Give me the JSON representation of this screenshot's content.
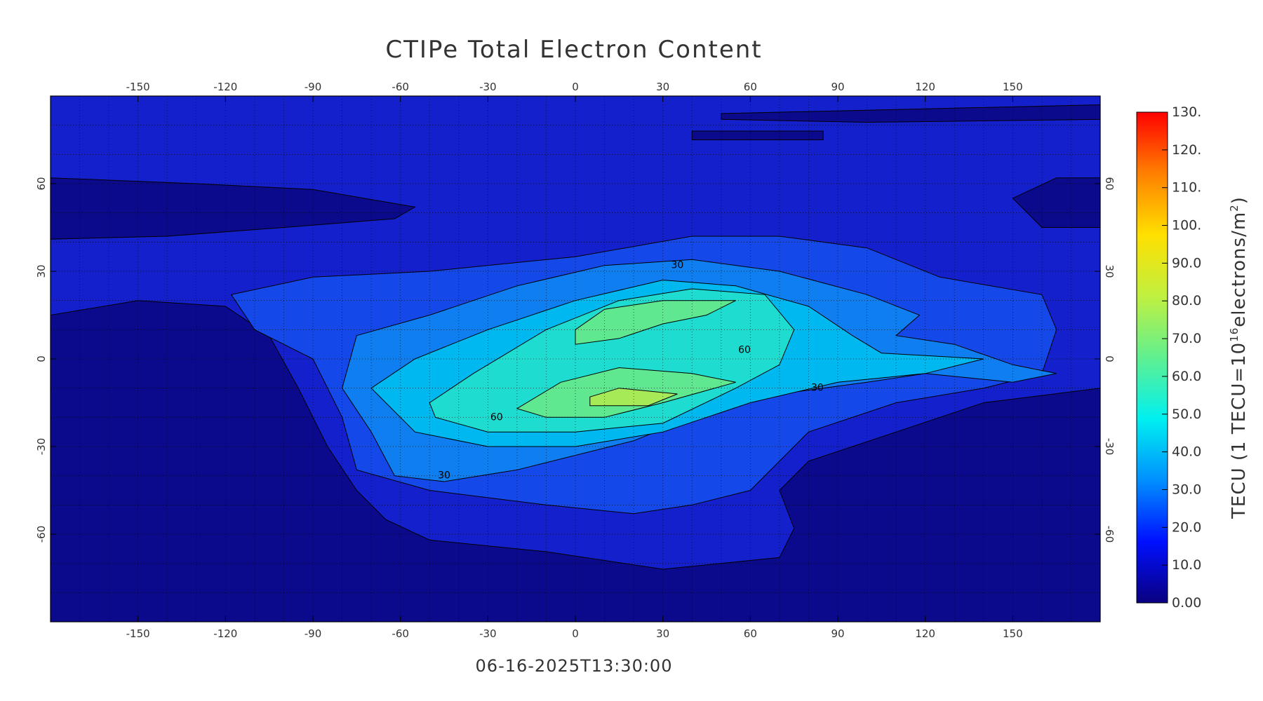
{
  "title": "CTIPe Total Electron Content",
  "timestamp": "06-16-2025T13:30:00",
  "map": {
    "xlim": [
      -180,
      180
    ],
    "ylim": [
      -90,
      90
    ],
    "xticks": [
      -150,
      -120,
      -90,
      -60,
      -30,
      0,
      30,
      60,
      90,
      120,
      150
    ],
    "yticks": [
      -60,
      -30,
      0,
      30,
      60
    ],
    "grid": true,
    "levels": [
      {
        "value": 0,
        "color": "#0b0a8c"
      },
      {
        "value": 10,
        "color": "#1420cc"
      },
      {
        "value": 20,
        "color": "#1448e8"
      },
      {
        "value": 30,
        "color": "#0f7ef0"
      },
      {
        "value": 40,
        "color": "#00b8f0"
      },
      {
        "value": 50,
        "color": "#1fdcd0"
      },
      {
        "value": 60,
        "color": "#5fe890"
      },
      {
        "value": 70,
        "color": "#a6ea58"
      }
    ],
    "contour_labels": [
      {
        "text": "30",
        "value": 30
      },
      {
        "text": "60",
        "value": 60
      },
      {
        "text": "60",
        "value": 60
      },
      {
        "text": "30",
        "value": 30
      },
      {
        "text": "30",
        "value": 30
      }
    ]
  },
  "colorbar": {
    "ylim": [
      0,
      130
    ],
    "ticks": [
      {
        "value": 0,
        "label": "0.00"
      },
      {
        "value": 10,
        "label": "10.0"
      },
      {
        "value": 20,
        "label": "20.0"
      },
      {
        "value": 30,
        "label": "30.0"
      },
      {
        "value": 40,
        "label": "40.0"
      },
      {
        "value": 50,
        "label": "50.0"
      },
      {
        "value": 60,
        "label": "60.0"
      },
      {
        "value": 70,
        "label": "70.0"
      },
      {
        "value": 80,
        "label": "80.0"
      },
      {
        "value": 90,
        "label": "90.0"
      },
      {
        "value": 100,
        "label": "100."
      },
      {
        "value": 110,
        "label": "110."
      },
      {
        "value": 120,
        "label": "120."
      },
      {
        "value": 130,
        "label": "130."
      }
    ],
    "colors": [
      "#0a0080",
      "#0010ff",
      "#0090ff",
      "#00f0f0",
      "#60f090",
      "#c0f040",
      "#ffe000",
      "#ff8000",
      "#ff0000"
    ],
    "title_parts": [
      {
        "text": "TECU (1 TECU=10",
        "sup": false
      },
      {
        "text": "16",
        "sup": true
      },
      {
        "text": "electrons/m",
        "sup": false
      },
      {
        "text": "2",
        "sup": true
      },
      {
        "text": ")",
        "sup": false
      }
    ]
  }
}
